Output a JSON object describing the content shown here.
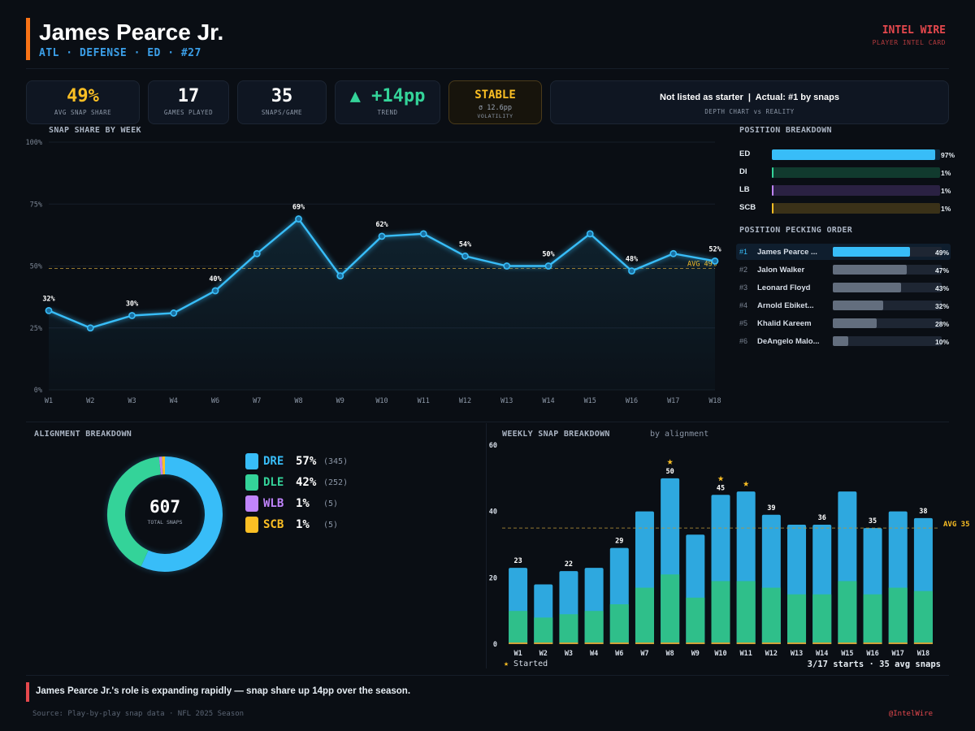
{
  "header": {
    "name": "James Pearce Jr.",
    "subtitle": "ATL · DEFENSE · ED · #27",
    "brand": "INTEL WIRE",
    "brand_sub": "PLAYER INTEL CARD"
  },
  "stats": {
    "avg_snap_share": {
      "value": "49%",
      "label": "AVG SNAP SHARE"
    },
    "games_played": {
      "value": "17",
      "label": "GAMES PLAYED"
    },
    "snaps_per_game": {
      "value": "35",
      "label": "SNAPS/GAME"
    },
    "trend": {
      "arrow": "▲",
      "value": "+14pp",
      "label": "TREND"
    },
    "volatility": {
      "value": "STABLE",
      "detail": "σ 12.6pp",
      "label": "VOLATILITY"
    },
    "depth": {
      "text": "Not listed as starter  |  Actual: #1 by snaps",
      "label": "DEPTH CHART vs REALITY"
    }
  },
  "colors": {
    "accent": "#f97316",
    "brand": "#e5484d",
    "blue": "#38bdf8",
    "green": "#34d399",
    "purple": "#c084fc",
    "yellow": "#fbbf24",
    "dre_bar": "#2ea8df",
    "dle_bar": "#2fbf8a"
  },
  "position_breakdown": {
    "title": "POSITION BREAKDOWN",
    "rows": [
      {
        "label": "ED",
        "pct": "97%",
        "value": 97,
        "color": "#38bdf8",
        "track": "#0e2a3d"
      },
      {
        "label": "DI",
        "pct": "1%",
        "value": 1,
        "color": "#34d399",
        "track": "#113a2e"
      },
      {
        "label": "LB",
        "pct": "1%",
        "value": 1,
        "color": "#c084fc",
        "track": "#2a2142"
      },
      {
        "label": "SCB",
        "pct": "1%",
        "value": 1,
        "color": "#fbbf24",
        "track": "#3a3118"
      }
    ]
  },
  "pecking_order": {
    "title": "POSITION PECKING ORDER",
    "rows": [
      {
        "rank": "#1",
        "name": "James Pearce ...",
        "pct": "49%",
        "value": 49,
        "highlight": true
      },
      {
        "rank": "#2",
        "name": "Jalon Walker",
        "pct": "47%",
        "value": 47,
        "highlight": false
      },
      {
        "rank": "#3",
        "name": "Leonard Floyd",
        "pct": "43%",
        "value": 43,
        "highlight": false
      },
      {
        "rank": "#4",
        "name": "Arnold Ebiket...",
        "pct": "32%",
        "value": 32,
        "highlight": false
      },
      {
        "rank": "#5",
        "name": "Khalid Kareem",
        "pct": "28%",
        "value": 28,
        "highlight": false
      },
      {
        "rank": "#6",
        "name": "DeAngelo Malo...",
        "pct": "10%",
        "value": 10,
        "highlight": false
      }
    ]
  },
  "alignment": {
    "title": "ALIGNMENT BREAKDOWN",
    "total": "607",
    "total_label": "TOTAL SNAPS",
    "items": [
      {
        "name": "DRE",
        "pct": "57%",
        "count": "(345)",
        "value": 345,
        "color": "#38bdf8"
      },
      {
        "name": "DLE",
        "pct": "42%",
        "count": "(252)",
        "value": 252,
        "color": "#34d399"
      },
      {
        "name": "WLB",
        "pct": "1%",
        "count": "(5)",
        "value": 5,
        "color": "#c084fc"
      },
      {
        "name": "SCB",
        "pct": "1%",
        "count": "(5)",
        "value": 5,
        "color": "#fbbf24"
      }
    ]
  },
  "chart_data": [
    {
      "type": "line",
      "title": "SNAP SHARE BY WEEK",
      "x": [
        "W1",
        "W2",
        "W3",
        "W4",
        "W6",
        "W7",
        "W8",
        "W9",
        "W10",
        "W11",
        "W12",
        "W13",
        "W14",
        "W15",
        "W16",
        "W17",
        "W18"
      ],
      "series": [
        {
          "values": [
            32,
            25,
            30,
            31,
            40,
            55,
            69,
            46,
            62,
            63,
            54,
            50,
            50,
            63,
            48,
            55,
            52
          ]
        }
      ],
      "point_labels": [
        "32%",
        "",
        "30%",
        "",
        "40%",
        "",
        "69%",
        "",
        "62%",
        "",
        "54%",
        "",
        "50%",
        "",
        "48%",
        "",
        "52%"
      ],
      "ylim": [
        0,
        100
      ],
      "yticks": [
        "0%",
        "25%",
        "50%",
        "75%",
        "100%"
      ],
      "reference_line": {
        "value": 49,
        "label": "AVG 49%"
      },
      "grid": true
    },
    {
      "type": "bar",
      "title": "WEEKLY SNAP BREAKDOWN",
      "subtitle": "by alignment",
      "categories": [
        "W1",
        "W2",
        "W3",
        "W4",
        "W6",
        "W7",
        "W8",
        "W9",
        "W10",
        "W11",
        "W12",
        "W13",
        "W14",
        "W15",
        "W16",
        "W17",
        "W18"
      ],
      "totals": [
        23,
        18,
        22,
        23,
        29,
        40,
        50,
        33,
        45,
        46,
        39,
        36,
        36,
        46,
        35,
        40,
        38
      ],
      "total_labels": [
        "23",
        "",
        "22",
        "",
        "29",
        "",
        "50",
        "",
        "45",
        "",
        "39",
        "",
        "36",
        "",
        "35",
        "",
        "38"
      ],
      "series": [
        {
          "name": "DLE",
          "values": [
            10,
            8,
            9,
            10,
            12,
            17,
            21,
            14,
            19,
            19,
            17,
            15,
            15,
            19,
            15,
            17,
            16
          ]
        },
        {
          "name": "DRE",
          "values": [
            13,
            10,
            13,
            13,
            17,
            23,
            29,
            19,
            26,
            27,
            22,
            21,
            21,
            27,
            20,
            23,
            22
          ]
        }
      ],
      "started": [
        false,
        false,
        false,
        false,
        false,
        false,
        true,
        false,
        true,
        true,
        false,
        false,
        false,
        false,
        false,
        false,
        false
      ],
      "ylim": [
        0,
        60
      ],
      "yticks": [
        "0",
        "20",
        "40",
        "60"
      ],
      "reference_line": {
        "value": 35,
        "label": "AVG 35"
      },
      "legend": "★ Started",
      "summary": "3/17 starts · 35 avg snaps"
    }
  ],
  "footer": {
    "insight": "James Pearce Jr.'s role is expanding rapidly — snap share up 14pp over the season.",
    "source": "Source: Play-by-play snap data · NFL 2025 Season",
    "handle": "@IntelWire"
  }
}
